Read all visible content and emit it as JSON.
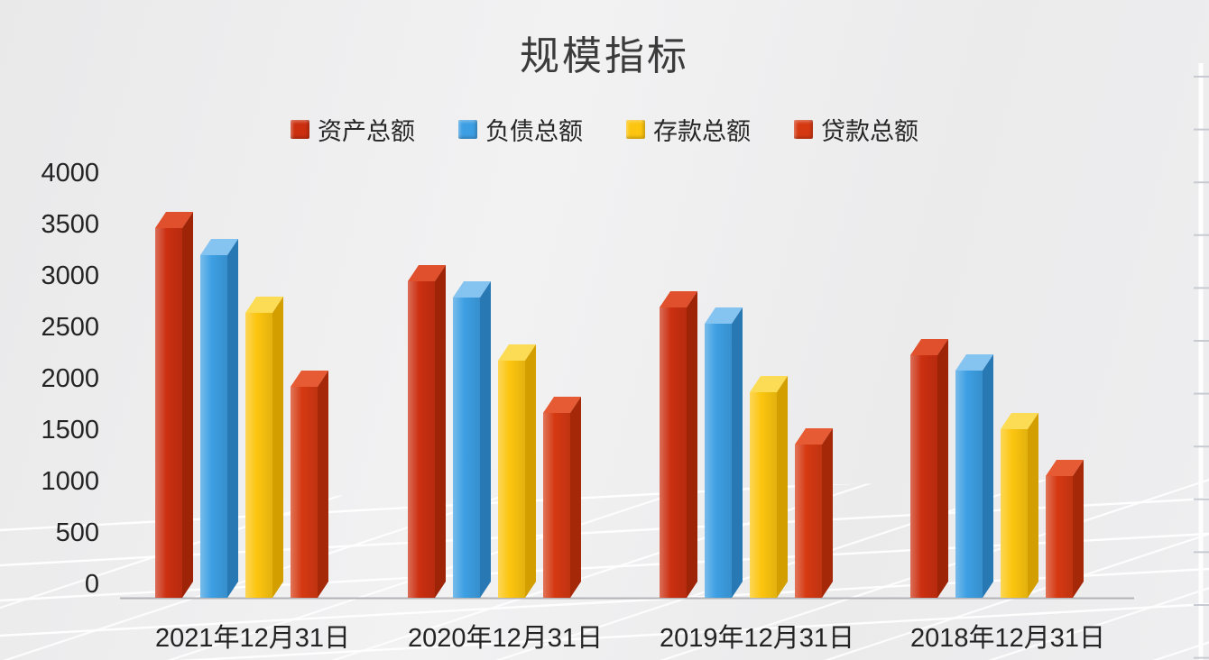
{
  "chart_data": {
    "type": "bar",
    "style": "3d-column",
    "title": "规模指标",
    "categories": [
      "2021年12月31日",
      "2020年12月31日",
      "2019年12月31日",
      "2018年12月31日"
    ],
    "series": [
      {
        "key": "assets",
        "name": "资产总额",
        "color": "#CB2F10",
        "top_color": "#E0502C",
        "side_color": "#9E2407",
        "values": [
          3500,
          3000,
          2750,
          2300
        ]
      },
      {
        "key": "liabilities",
        "name": "负债总额",
        "color": "#3D9FE3",
        "top_color": "#85C3F0",
        "side_color": "#2878B4",
        "values": [
          3250,
          2850,
          2600,
          2150
        ]
      },
      {
        "key": "deposits",
        "name": "存款总额",
        "color": "#FCC50F",
        "top_color": "#FDDC55",
        "side_color": "#D29E00",
        "values": [
          2700,
          2250,
          1950,
          1600
        ]
      },
      {
        "key": "loans",
        "name": "贷款总额",
        "color": "#D53912",
        "top_color": "#E65A34",
        "side_color": "#A52908",
        "values": [
          2000,
          1750,
          1450,
          1150
        ]
      }
    ],
    "yticks": [
      0,
      500,
      1000,
      1500,
      2000,
      2500,
      3000,
      3500,
      4000
    ],
    "ylim": [
      0,
      4000
    ],
    "legend_position": "top",
    "grid": "3d-floor-perspective"
  },
  "colors": {
    "background": "#ECECED",
    "floor_line": "#FFFFFF",
    "axis_line": "#B3B3B8",
    "wall_tick": "#C7CBD1",
    "title_text": "#3B3B3B",
    "tick_text": "#232323"
  }
}
